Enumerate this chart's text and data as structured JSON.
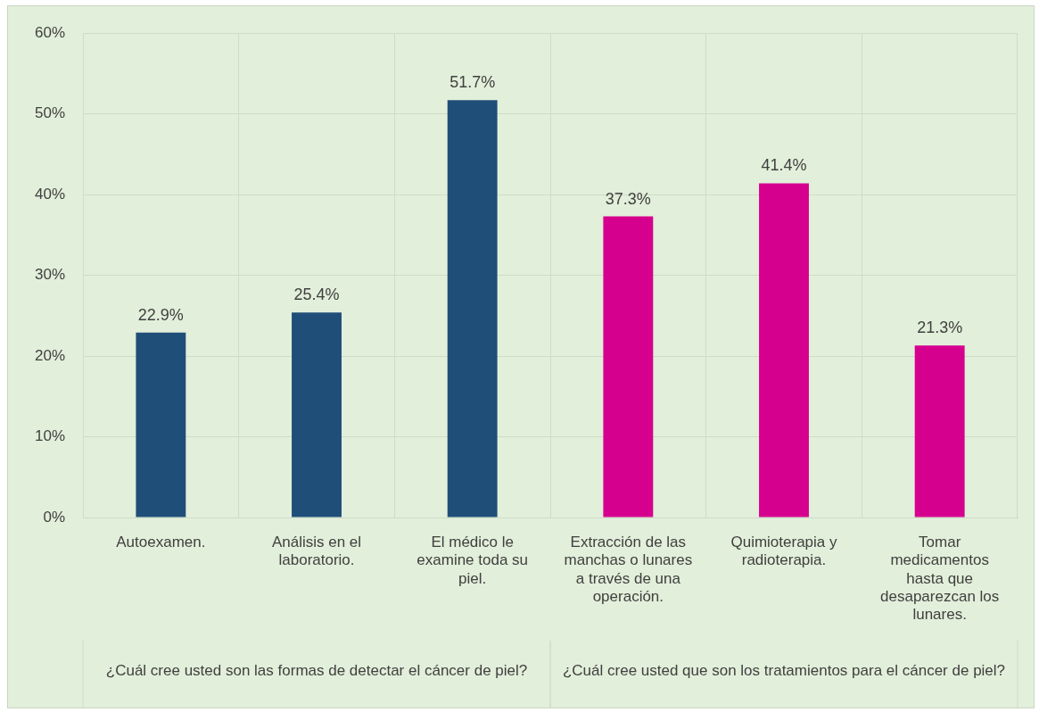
{
  "chart_data": {
    "type": "bar",
    "categories": [
      "Autoexamen.",
      "Análisis en el laboratorio.",
      "El médico le examine toda su piel.",
      "Extracción de las manchas o lunares a través de una operación.",
      "Quimioterapia y radioterapia.",
      "Tomar medicamentos hasta que desaparezcan los lunares."
    ],
    "series": [
      {
        "color": "#1f4e79",
        "values": [
          22.9,
          25.4,
          51.7,
          null,
          null,
          null
        ],
        "value_labels": [
          "22.9%",
          "25.4%",
          "51.7%",
          null,
          null,
          null
        ]
      },
      {
        "color": "#d6008f",
        "values": [
          null,
          null,
          null,
          37.3,
          41.4,
          21.3
        ],
        "value_labels": [
          null,
          null,
          null,
          "37.3%",
          "41.4%",
          "21.3%"
        ]
      }
    ],
    "ylim": [
      0,
      60
    ],
    "yticks": [
      {
        "value": 0,
        "label": "0%"
      },
      {
        "value": 10,
        "label": "10%"
      },
      {
        "value": 20,
        "label": "20%"
      },
      {
        "value": 30,
        "label": "30%"
      },
      {
        "value": 40,
        "label": "40%"
      },
      {
        "value": 50,
        "label": "50%"
      },
      {
        "value": 60,
        "label": "60%"
      }
    ],
    "annotations": [
      "¿Cuál cree usted son las formas de detectar el cáncer de piel?",
      "¿Cuál cree usted que son los tratamientos para el cáncer de piel?"
    ],
    "grid": true,
    "legend": false
  }
}
